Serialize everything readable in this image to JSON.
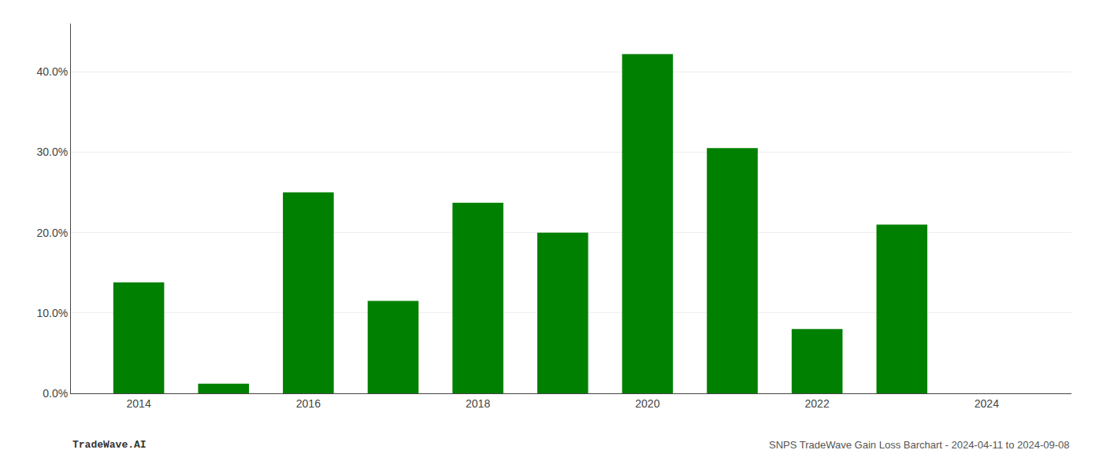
{
  "chart_data": {
    "type": "bar",
    "x": [
      2014,
      2015,
      2016,
      2017,
      2018,
      2019,
      2020,
      2021,
      2022,
      2023
    ],
    "values": [
      0.138,
      0.012,
      0.25,
      0.115,
      0.237,
      0.2,
      0.422,
      0.305,
      0.08,
      0.21
    ],
    "color": "#008000",
    "xlim": [
      2013.2,
      2025.0
    ],
    "xticks": [
      2014,
      2016,
      2018,
      2020,
      2022,
      2024
    ],
    "ylim": [
      0,
      0.46
    ],
    "yticks": [
      {
        "value": 0.0,
        "label": "0.0%"
      },
      {
        "value": 0.1,
        "label": "10.0%"
      },
      {
        "value": 0.2,
        "label": "20.0%"
      },
      {
        "value": 0.3,
        "label": "30.0%"
      },
      {
        "value": 0.4,
        "label": "40.0%"
      }
    ],
    "grid": "y",
    "annotations": [
      "TradeWave.AI",
      "SNPS TradeWave Gain Loss Barchart - 2024-04-11 to 2024-09-08"
    ]
  }
}
